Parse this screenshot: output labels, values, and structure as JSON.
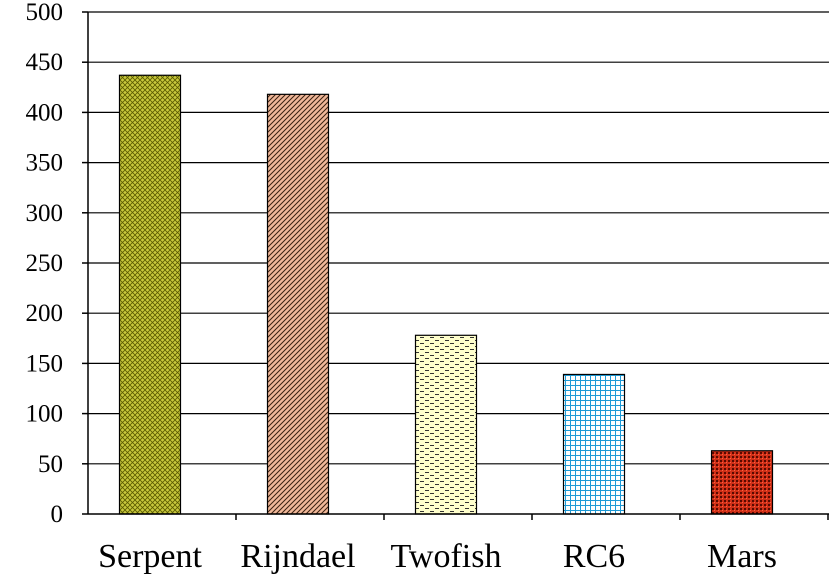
{
  "chart_data": {
    "type": "bar",
    "title": "",
    "xlabel": "",
    "ylabel": "",
    "categories": [
      "Serpent",
      "Rijndael",
      "Twofish",
      "RC6",
      "Mars"
    ],
    "values": [
      437,
      418,
      178,
      139,
      63
    ],
    "ylim": [
      0,
      500
    ],
    "yticks": [
      "0",
      "50",
      "100",
      "150",
      "200",
      "250",
      "300",
      "350",
      "400",
      "450",
      "500"
    ],
    "grid": true,
    "legend": "none",
    "bar_styles": [
      {
        "pattern": "crosshatch-fine",
        "fill": "#c8c83c",
        "ink": "#5a5a00"
      },
      {
        "pattern": "diagonal",
        "fill": "#f0b89a",
        "ink": "#3a2010"
      },
      {
        "pattern": "dashes",
        "fill": "#ffffcc",
        "ink": "#333333"
      },
      {
        "pattern": "grid",
        "fill": "#ffffff",
        "ink": "#1e9ad6"
      },
      {
        "pattern": "brick",
        "fill": "#d03018",
        "ink": "#5a0a00"
      }
    ]
  }
}
